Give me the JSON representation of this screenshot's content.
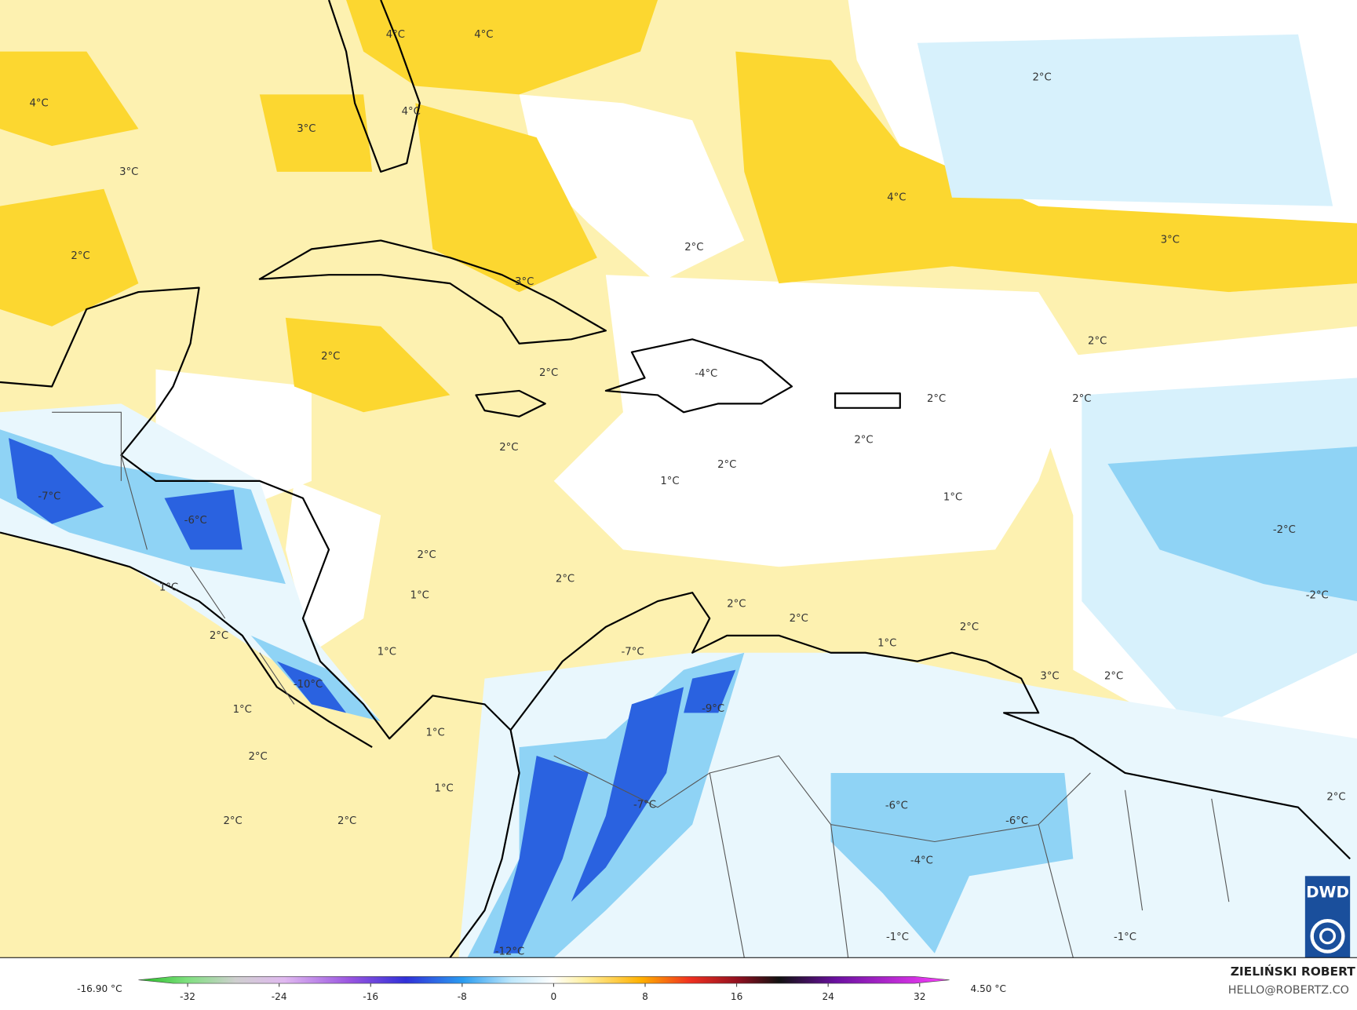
{
  "map": {
    "labels": [
      "4°C",
      "4°C",
      "4°C",
      "4°C",
      "4°C",
      "3°C",
      "3°C",
      "3°C",
      "3°C",
      "3°C",
      "2°C",
      "2°C",
      "2°C",
      "2°C",
      "2°C",
      "2°C",
      "2°C",
      "2°C",
      "2°C",
      "2°C",
      "2°C",
      "2°C",
      "2°C",
      "2°C",
      "2°C",
      "2°C",
      "2°C",
      "2°C",
      "2°C",
      "2°C",
      "2°C",
      "2°C",
      "1°C",
      "1°C",
      "1°C",
      "1°C",
      "1°C",
      "1°C",
      "1°C",
      "1°C",
      "1°C",
      "-4°C",
      "-7°C",
      "-6°C",
      "-7°C",
      "-10°C",
      "-9°C",
      "-7°C",
      "-6°C",
      "-6°C",
      "-4°C",
      "-12°C",
      "-1°C",
      "-1°C",
      "-2°C",
      "-2°C"
    ],
    "logo": "DWD"
  },
  "colorbar": {
    "min_label": "-16.90 °C",
    "max_label": "4.50 °C",
    "lim": [
      -36.3,
      34.6
    ],
    "ticks": [
      -32,
      -24,
      -16,
      -8,
      0,
      8,
      16,
      24,
      32
    ]
  },
  "footer": {
    "author": "ZIELIŃSKI ROBERT",
    "contact": "HELLO@ROBERTZ.CO"
  }
}
